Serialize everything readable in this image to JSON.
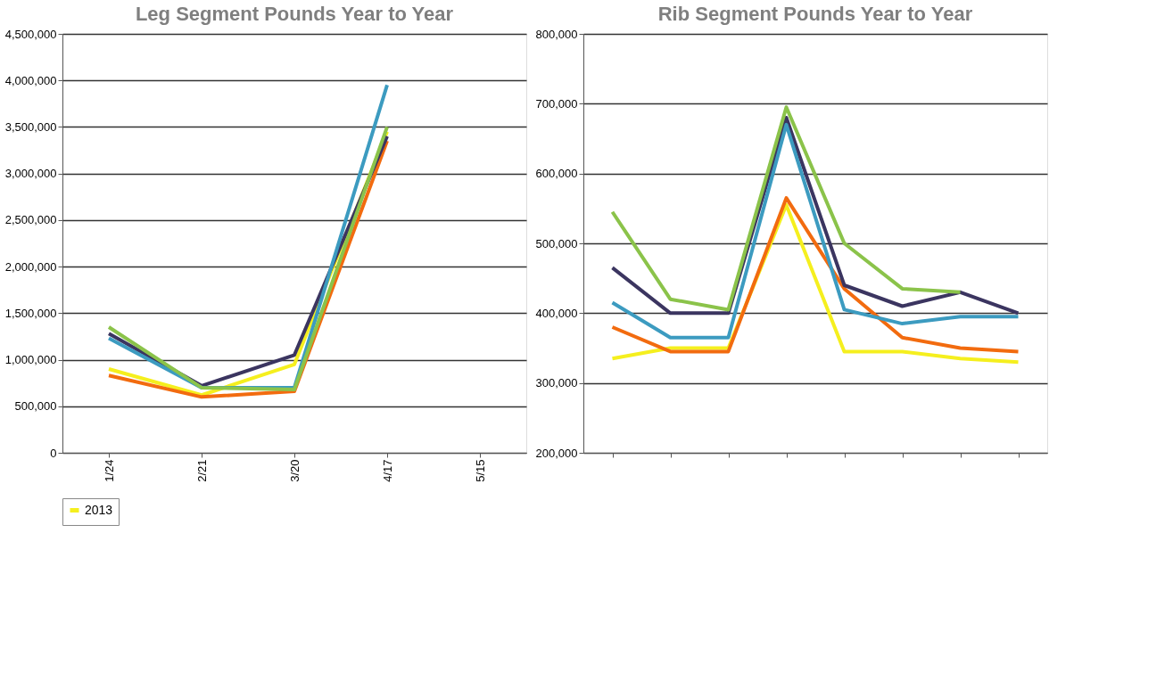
{
  "chart_data": [
    {
      "type": "line",
      "title": "Leg Segment Pounds Year to Year",
      "categories": [
        "1/24",
        "2/21",
        "3/20",
        "4/17",
        "5/15"
      ],
      "ylim": [
        0,
        4500000
      ],
      "yticks": [
        0,
        {
          "value": 500000,
          "label": "500,000"
        },
        {
          "value": 1000000,
          "label": "1,000,000"
        },
        {
          "value": 1500000,
          "label": "1,500,000"
        },
        {
          "value": 2000000,
          "label": "2,000,000"
        },
        {
          "value": 2500000,
          "label": "2,500,000"
        },
        {
          "value": 3000000,
          "label": "3,000,000"
        },
        {
          "value": 3500000,
          "label": "3,500,000"
        },
        {
          "value": 4000000,
          "label": "4,000,000"
        },
        {
          "value": 4500000,
          "label": "4,500,000"
        }
      ],
      "grid": "y",
      "legend": "bottom",
      "marker": "none",
      "line_style": "solid",
      "series": [
        {
          "name": "2013",
          "color": "#f5ef1e",
          "values": [
            900000,
            620000,
            950000,
            3450000,
            null
          ]
        },
        {
          "color": "#f26b0f",
          "values": [
            830000,
            600000,
            660000,
            3350000,
            null
          ]
        },
        {
          "color": "#3b3560",
          "values": [
            1280000,
            720000,
            1050000,
            3400000,
            null
          ]
        },
        {
          "color": "#3c9bc0",
          "values": [
            1230000,
            700000,
            700000,
            3950000,
            null
          ]
        },
        {
          "color": "#8bc34a",
          "values": [
            1350000,
            700000,
            680000,
            3500000,
            null
          ]
        }
      ]
    },
    {
      "type": "line",
      "title": "Rib Segment Pounds Year to Year",
      "categories": [
        null,
        null,
        null,
        null,
        null,
        null,
        null,
        null
      ],
      "ylim": [
        200000,
        800000
      ],
      "yticks": [
        {
          "value": 200000,
          "label": "200,000"
        },
        {
          "value": 300000,
          "label": "300,000"
        },
        {
          "value": 400000,
          "label": "400,000"
        },
        {
          "value": 500000,
          "label": "500,000"
        },
        {
          "value": 600000,
          "label": "600,000"
        },
        {
          "value": 700000,
          "label": "700,000"
        },
        {
          "value": 800000,
          "label": "800,000"
        }
      ],
      "grid": "y",
      "tick_labels": "y",
      "marker": "none",
      "line_style": "solid",
      "series": [
        {
          "color": "#f5ef1e",
          "values": [
            335000,
            350000,
            350000,
            555000,
            345000,
            345000,
            335000,
            330000
          ]
        },
        {
          "color": "#f26b0f",
          "values": [
            380000,
            345000,
            345000,
            565000,
            435000,
            365000,
            350000,
            345000
          ]
        },
        {
          "color": "#3b3560",
          "values": [
            465000,
            400000,
            400000,
            680000,
            440000,
            410000,
            430000,
            400000
          ]
        },
        {
          "color": "#3c9bc0",
          "values": [
            415000,
            365000,
            365000,
            670000,
            405000,
            385000,
            395000,
            395000
          ]
        },
        {
          "color": "#8bc34a",
          "values": [
            545000,
            420000,
            405000,
            695000,
            500000,
            435000,
            430000,
            null
          ]
        }
      ]
    }
  ]
}
